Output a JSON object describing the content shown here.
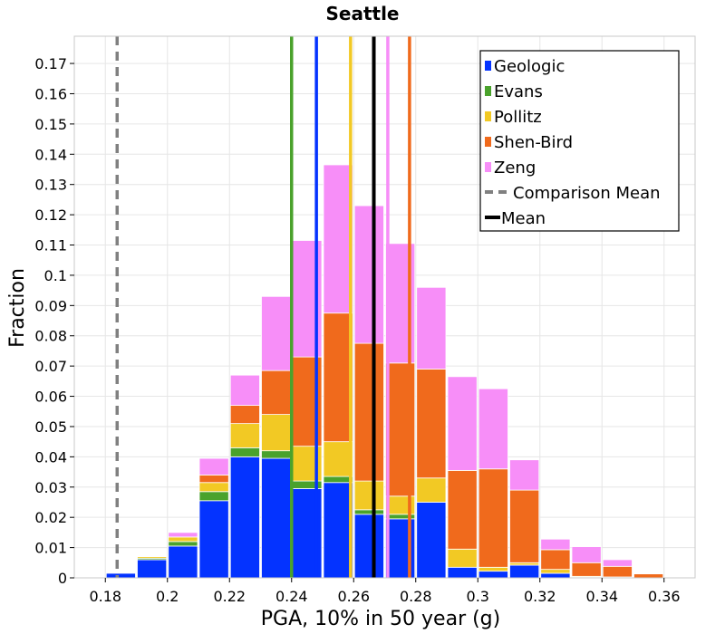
{
  "chart_data": {
    "type": "bar",
    "stacked": true,
    "title": "Seattle",
    "xlabel": "PGA, 10% in 50 year (g)",
    "ylabel": "Fraction",
    "xlim": [
      0.17,
      0.37
    ],
    "ylim": [
      0,
      0.179
    ],
    "bin_width": 0.01,
    "grid": true,
    "legend_position": "top-right",
    "x_ticks": [
      "0.18",
      "0.2",
      "0.22",
      "0.24",
      "0.26",
      "0.28",
      "0.3",
      "0.32",
      "0.34",
      "0.36"
    ],
    "y_ticks": [
      "0",
      "0.01",
      "0.02",
      "0.03",
      "0.04",
      "0.05",
      "0.06",
      "0.07",
      "0.08",
      "0.09",
      "0.1",
      "0.11",
      "0.12",
      "0.13",
      "0.14",
      "0.15",
      "0.16",
      "0.17"
    ],
    "bin_centers": [
      0.185,
      0.195,
      0.205,
      0.215,
      0.225,
      0.235,
      0.245,
      0.255,
      0.265,
      0.275,
      0.285,
      0.295,
      0.305,
      0.315,
      0.325,
      0.335,
      0.345,
      0.355
    ],
    "series": [
      {
        "name": "Geologic",
        "color": "#0433ff",
        "values": [
          0.0015,
          0.006,
          0.0105,
          0.0255,
          0.04,
          0.0395,
          0.0295,
          0.0315,
          0.021,
          0.0195,
          0.025,
          0.0035,
          0.0022,
          0.0042,
          0.0015,
          0.0002,
          0.0001,
          0.0
        ]
      },
      {
        "name": "Evans",
        "color": "#4aa22c",
        "values": [
          0.0,
          0.0005,
          0.0015,
          0.003,
          0.003,
          0.0025,
          0.0025,
          0.002,
          0.0015,
          0.0015,
          0.0,
          0.0,
          0.0,
          0.0,
          0.0,
          0.0,
          0.0,
          0.0
        ]
      },
      {
        "name": "Pollitz",
        "color": "#f2c924",
        "values": [
          0.0,
          0.0005,
          0.0015,
          0.003,
          0.008,
          0.012,
          0.0115,
          0.0115,
          0.0095,
          0.006,
          0.008,
          0.006,
          0.0013,
          0.0008,
          0.0013,
          0.0003,
          0.0002,
          0.0
        ]
      },
      {
        "name": "Shen-Bird",
        "color": "#f06a1c",
        "values": [
          0.0,
          0.0,
          0.0,
          0.0025,
          0.006,
          0.0145,
          0.0295,
          0.0425,
          0.0455,
          0.044,
          0.036,
          0.026,
          0.0325,
          0.024,
          0.0065,
          0.0045,
          0.0035,
          0.0013
        ]
      },
      {
        "name": "Zeng",
        "color": "#f78ef8",
        "values": [
          0.0,
          0.0002,
          0.0015,
          0.0055,
          0.01,
          0.0245,
          0.0385,
          0.049,
          0.0455,
          0.0395,
          0.027,
          0.031,
          0.0265,
          0.01,
          0.0035,
          0.0053,
          0.0022,
          0.0
        ]
      }
    ],
    "vertical_lines": [
      {
        "name": "Geologic",
        "x": 0.248,
        "color": "#0433ff",
        "style": "solid"
      },
      {
        "name": "Evans",
        "x": 0.24,
        "color": "#4aa22c",
        "style": "solid"
      },
      {
        "name": "Pollitz",
        "x": 0.259,
        "color": "#f2c924",
        "style": "solid"
      },
      {
        "name": "Shen-Bird",
        "x": 0.278,
        "color": "#f06a1c",
        "style": "solid"
      },
      {
        "name": "Zeng",
        "x": 0.271,
        "color": "#f78ef8",
        "style": "solid"
      },
      {
        "name": "Comparison Mean",
        "x": 0.1838,
        "color": "#808080",
        "style": "dashed"
      },
      {
        "name": "Mean",
        "x": 0.2665,
        "color": "#000000",
        "style": "solid"
      }
    ],
    "legend": [
      {
        "label": "Geologic",
        "color": "#0433ff",
        "marker": "square"
      },
      {
        "label": "Evans",
        "color": "#4aa22c",
        "marker": "square"
      },
      {
        "label": "Pollitz",
        "color": "#f2c924",
        "marker": "square"
      },
      {
        "label": "Shen-Bird",
        "color": "#f06a1c",
        "marker": "square"
      },
      {
        "label": "Zeng",
        "color": "#f78ef8",
        "marker": "square"
      },
      {
        "label": "Comparison Mean",
        "color": "#808080",
        "marker": "dashed-line"
      },
      {
        "label": "Mean",
        "color": "#000000",
        "marker": "line"
      }
    ]
  }
}
